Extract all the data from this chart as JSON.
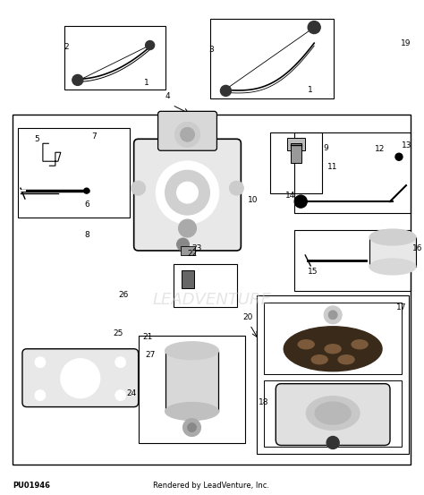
{
  "bg_color": "#ffffff",
  "fig_width": 4.74,
  "fig_height": 5.53,
  "dpi": 100,
  "footer_left": "PU01946",
  "footer_right": "Rendered by LeadVenture, Inc.",
  "watermark": "LEADVENTURE"
}
